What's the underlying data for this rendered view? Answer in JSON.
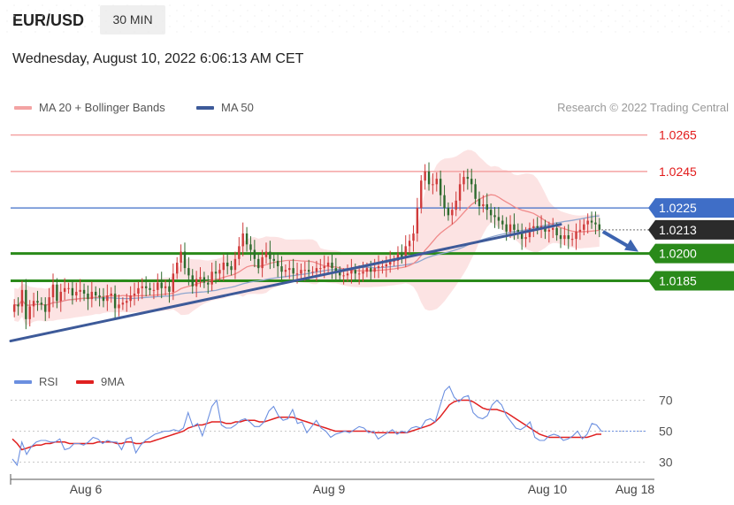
{
  "header": {
    "symbol": "EUR/USD",
    "timeframe": "30 MIN",
    "datetime": "Wednesday, August 10, 2022 6:06:13 AM CET"
  },
  "legend": {
    "ma20_label": "MA 20 + Bollinger Bands",
    "ma50_label": "MA 50",
    "rsi_label": "RSI",
    "rsi_ma_label": "9MA"
  },
  "credit": "Research © 2022 Trading Central",
  "colors": {
    "up": "#d03a3a",
    "down": "#2e6b2e",
    "band": "#fbd9d9",
    "ma20": "#f08a8a",
    "ma50": "#8ea6cf",
    "trend": "#3d5a99",
    "resistance_red": "#f4a3a3",
    "resistance_blue": "#3f6ec7",
    "support_green": "#2a8a1a",
    "rsi": "#6b8fe0",
    "rsi_ma": "#e02020"
  },
  "chart_data": [
    {
      "type": "candlestick",
      "title": "EUR/USD 30 MIN",
      "x_tick_labels": [
        "Aug 6",
        "Aug 9",
        "Aug 10",
        "Aug 18"
      ],
      "ylim": [
        1.0145,
        1.0276
      ],
      "ohlc_close": [
        1.0172,
        1.0171,
        1.018,
        1.0164,
        1.0171,
        1.0174,
        1.0173,
        1.0172,
        1.0168,
        1.0176,
        1.0183,
        1.0174,
        1.0179,
        1.0181,
        1.0181,
        1.0177,
        1.0179,
        1.018,
        1.0178,
        1.0175,
        1.0179,
        1.0177,
        1.0176,
        1.0174,
        1.0177,
        1.0178,
        1.017,
        1.0172,
        1.0173,
        1.0174,
        1.0177,
        1.0178,
        1.0181,
        1.0182,
        1.0181,
        1.018,
        1.018,
        1.0184,
        1.0181,
        1.0182,
        1.0179,
        1.0189,
        1.0195,
        1.0201,
        1.0192,
        1.0188,
        1.0182,
        1.0186,
        1.0187,
        1.0184,
        1.0183,
        1.019,
        1.0189,
        1.0191,
        1.0195,
        1.0193,
        1.0191,
        1.0197,
        1.0204,
        1.0211,
        1.0205,
        1.0202,
        1.0197,
        1.0192,
        1.0198,
        1.0201,
        1.0197,
        1.0196,
        1.0193,
        1.019,
        1.0191,
        1.0192,
        1.0189,
        1.0189,
        1.0191,
        1.0191,
        1.019,
        1.019,
        1.0192,
        1.0192,
        1.0193,
        1.0195,
        1.0192,
        1.019,
        1.0188,
        1.0188,
        1.0189,
        1.0191,
        1.0189,
        1.0189,
        1.019,
        1.0192,
        1.019,
        1.0192,
        1.0193,
        1.0193,
        1.0194,
        1.0196,
        1.0196,
        1.02,
        1.0198,
        1.0204,
        1.0207,
        1.0211,
        1.0225,
        1.024,
        1.0245,
        1.0238,
        1.0238,
        1.0241,
        1.0232,
        1.0225,
        1.0221,
        1.0224,
        1.0229,
        1.0238,
        1.0242,
        1.0241,
        1.0238,
        1.023,
        1.0226,
        1.0227,
        1.0224,
        1.0221,
        1.022,
        1.0218,
        1.0216,
        1.0212,
        1.0216,
        1.0213,
        1.0212,
        1.0208,
        1.0209,
        1.0214,
        1.0215,
        1.0214,
        1.0215,
        1.0212,
        1.0213,
        1.0214,
        1.021,
        1.0208,
        1.021,
        1.0208,
        1.0208,
        1.0212,
        1.0213,
        1.0216,
        1.0218,
        1.0217,
        1.0216,
        1.0213
      ],
      "ma20_label": "MA 20 + Bollinger Bands",
      "ma50_label": "MA 50",
      "levels": [
        {
          "value": 1.0265,
          "label": "1.0265",
          "kind": "resistance"
        },
        {
          "value": 1.0245,
          "label": "1.0245",
          "kind": "resistance"
        },
        {
          "value": 1.0225,
          "label": "1.0225",
          "kind": "pivot"
        },
        {
          "value": 1.0213,
          "label": "1.0213",
          "kind": "last"
        },
        {
          "value": 1.02,
          "label": "1.0200",
          "kind": "support"
        },
        {
          "value": 1.0185,
          "label": "1.0185",
          "kind": "support"
        }
      ],
      "trendline": {
        "from_index": 0,
        "from_value": 1.0152,
        "to_index": 141,
        "to_value": 1.0216
      },
      "forecast": "down to 1.0200"
    },
    {
      "type": "line",
      "title": "RSI",
      "series": [
        {
          "name": "RSI"
        },
        {
          "name": "9MA"
        }
      ],
      "ylim": [
        20,
        80
      ],
      "y_ticks": [
        70,
        50,
        30
      ],
      "rsi_values": [
        32,
        28,
        43,
        35,
        40,
        43,
        44,
        44,
        43,
        43,
        45,
        38,
        39,
        42,
        42,
        41,
        43,
        46,
        45,
        42,
        44,
        43,
        43,
        38,
        45,
        46,
        36,
        41,
        44,
        46,
        48,
        49,
        50,
        50,
        51,
        50,
        52,
        62,
        53,
        55,
        47,
        56,
        66,
        70,
        54,
        52,
        52,
        54,
        57,
        58,
        56,
        53,
        53,
        56,
        63,
        66,
        60,
        57,
        58,
        64,
        55,
        56,
        49,
        53,
        57,
        52,
        50,
        46,
        48,
        49,
        50,
        49,
        51,
        53,
        52,
        49,
        50,
        45,
        47,
        49,
        51,
        48,
        50,
        49,
        52,
        53,
        52,
        57,
        58,
        56,
        66,
        76,
        79,
        72,
        69,
        72,
        73,
        62,
        59,
        58,
        60,
        67,
        70,
        67,
        60,
        56,
        52,
        51,
        53,
        56,
        46,
        44,
        44,
        47,
        48,
        47,
        44,
        45,
        47,
        50,
        45,
        48,
        55,
        54,
        50
      ],
      "rsi_ma_values": [
        45,
        42,
        38,
        39,
        40,
        41,
        41,
        42,
        42,
        43,
        43,
        43,
        42,
        42,
        42,
        42,
        42,
        42,
        43,
        43,
        43,
        43,
        42,
        42,
        43,
        43,
        42,
        42,
        43,
        43,
        44,
        45,
        46,
        47,
        48,
        49,
        50,
        52,
        53,
        54,
        54,
        55,
        56,
        56,
        56,
        55,
        55,
        56,
        56,
        57,
        57,
        57,
        56,
        56,
        57,
        58,
        59,
        59,
        59,
        59,
        58,
        57,
        56,
        55,
        54,
        53,
        52,
        51,
        50,
        50,
        50,
        50,
        50,
        50,
        50,
        50,
        49,
        49,
        49,
        49,
        49,
        49,
        49,
        49,
        50,
        51,
        52,
        53,
        54,
        56,
        59,
        63,
        67,
        69,
        70,
        70,
        70,
        69,
        67,
        65,
        64,
        64,
        64,
        63,
        62,
        60,
        58,
        56,
        54,
        52,
        50,
        48,
        47,
        46,
        46,
        46,
        46,
        46,
        46,
        46,
        46,
        46,
        47,
        48,
        48
      ]
    }
  ]
}
